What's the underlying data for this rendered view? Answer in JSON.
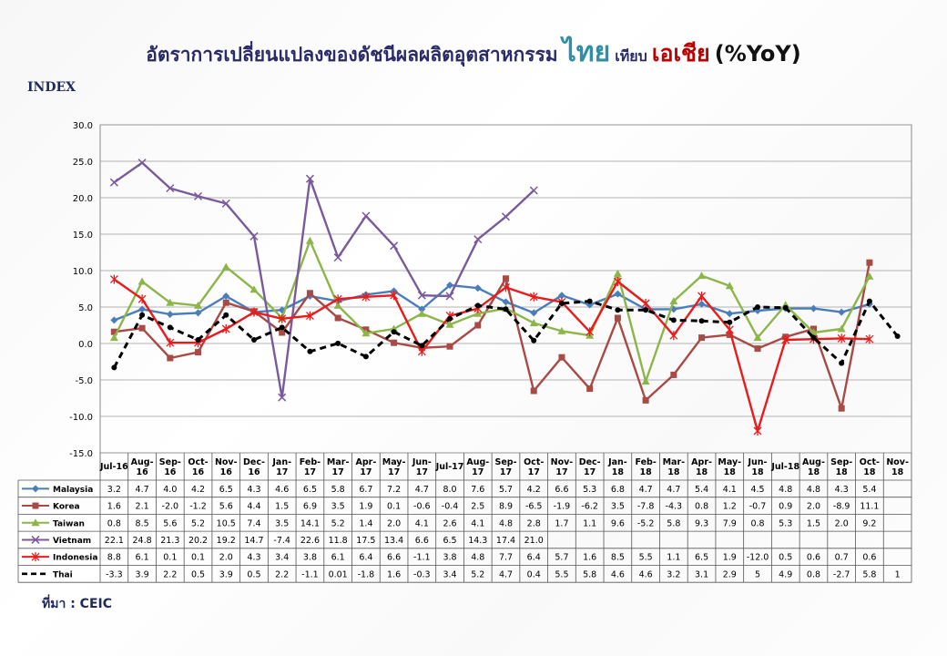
{
  "title": {
    "part1": "อัตราการเปลี่ยนแปลงของดัชนีผลผลิตอุตสาหกรรม",
    "part2": "ไทย",
    "part3": "เทียบ",
    "part4": "เอเชีย",
    "part5": "(%YoY)"
  },
  "y_axis_label": "INDEX",
  "source": "ที่มา : CEIC",
  "colors": {
    "Malaysia": "#4a7ebb",
    "Korea": "#a84a45",
    "Taiwan": "#8db64a",
    "Vietnam": "#7a5a9c",
    "Indonesia": "#e81c1c",
    "Thai": "#000000"
  },
  "chart_data": {
    "type": "line",
    "ylim": [
      -15,
      30
    ],
    "yticks": [
      "30.0",
      "25.0",
      "20.0",
      "15.0",
      "10.0",
      "5.0",
      "0.0",
      "-5.0",
      "-10.0",
      "-15.0"
    ],
    "grid": true,
    "legend": "data-table-below",
    "categories": [
      [
        "Jul-16"
      ],
      [
        "Aug-",
        "16"
      ],
      [
        "Sep-",
        "16"
      ],
      [
        "Oct-",
        "16"
      ],
      [
        "Nov-",
        "16"
      ],
      [
        "Dec-",
        "16"
      ],
      [
        "Jan-",
        "17"
      ],
      [
        "Feb-",
        "17"
      ],
      [
        "Mar-",
        "17"
      ],
      [
        "Apr-",
        "17"
      ],
      [
        "May-",
        "17"
      ],
      [
        "Jun-",
        "17"
      ],
      [
        "Jul-17"
      ],
      [
        "Aug-",
        "17"
      ],
      [
        "Sep-",
        "17"
      ],
      [
        "Oct-",
        "17"
      ],
      [
        "Nov-",
        "17"
      ],
      [
        "Dec-",
        "17"
      ],
      [
        "Jan-",
        "18"
      ],
      [
        "Feb-",
        "18"
      ],
      [
        "Mar-",
        "18"
      ],
      [
        "Apr-",
        "18"
      ],
      [
        "May-",
        "18"
      ],
      [
        "Jun-",
        "18"
      ],
      [
        "Jul-18"
      ],
      [
        "Aug-",
        "18"
      ],
      [
        "Sep-",
        "18"
      ],
      [
        "Oct-",
        "18"
      ],
      [
        "Nov-",
        "18"
      ]
    ],
    "series": [
      {
        "name": "Malaysia",
        "marker": "diamond",
        "values": [
          3.2,
          4.7,
          4.0,
          4.2,
          6.5,
          4.3,
          4.6,
          6.5,
          5.8,
          6.7,
          7.2,
          4.7,
          8.0,
          7.6,
          5.7,
          4.2,
          6.6,
          5.3,
          6.8,
          4.7,
          4.7,
          5.4,
          4.1,
          4.5,
          4.8,
          4.8,
          4.3,
          5.4,
          null
        ],
        "labels": [
          "3.2",
          "4.7",
          "4.0",
          "4.2",
          "6.5",
          "4.3",
          "4.6",
          "6.5",
          "5.8",
          "6.7",
          "7.2",
          "4.7",
          "8.0",
          "7.6",
          "5.7",
          "4.2",
          "6.6",
          "5.3",
          "6.8",
          "4.7",
          "4.7",
          "5.4",
          "4.1",
          "4.5",
          "4.8",
          "4.8",
          "4.3",
          "5.4",
          ""
        ]
      },
      {
        "name": "Korea",
        "marker": "square",
        "values": [
          1.6,
          2.1,
          -2.0,
          -1.2,
          5.6,
          4.4,
          1.5,
          6.9,
          3.5,
          1.9,
          0.1,
          -0.6,
          -0.4,
          2.5,
          8.9,
          -6.5,
          -1.9,
          -6.2,
          3.5,
          -7.8,
          -4.3,
          0.8,
          1.2,
          -0.7,
          0.9,
          2.0,
          -8.9,
          11.1,
          null
        ],
        "labels": [
          "1.6",
          "2.1",
          "-2.0",
          "-1.2",
          "5.6",
          "4.4",
          "1.5",
          "6.9",
          "3.5",
          "1.9",
          "0.1",
          "-0.6",
          "-0.4",
          "2.5",
          "8.9",
          "-6.5",
          "-1.9",
          "-6.2",
          "3.5",
          "-7.8",
          "-4.3",
          "0.8",
          "1.2",
          "-0.7",
          "0.9",
          "2.0",
          "-8.9",
          "11.1",
          ""
        ]
      },
      {
        "name": "Taiwan",
        "marker": "triangle",
        "values": [
          0.8,
          8.5,
          5.6,
          5.2,
          10.5,
          7.4,
          3.5,
          14.1,
          5.2,
          1.4,
          2.0,
          4.1,
          2.6,
          4.1,
          4.8,
          2.8,
          1.7,
          1.1,
          9.6,
          -5.2,
          5.8,
          9.3,
          7.9,
          0.8,
          5.3,
          1.5,
          2.0,
          9.2,
          null
        ],
        "labels": [
          "0.8",
          "8.5",
          "5.6",
          "5.2",
          "10.5",
          "7.4",
          "3.5",
          "14.1",
          "5.2",
          "1.4",
          "2.0",
          "4.1",
          "2.6",
          "4.1",
          "4.8",
          "2.8",
          "1.7",
          "1.1",
          "9.6",
          "-5.2",
          "5.8",
          "9.3",
          "7.9",
          "0.8",
          "5.3",
          "1.5",
          "2.0",
          "9.2",
          ""
        ]
      },
      {
        "name": "Vietnam",
        "marker": "x",
        "values": [
          22.1,
          24.8,
          21.3,
          20.2,
          19.2,
          14.7,
          -7.4,
          22.6,
          11.8,
          17.5,
          13.4,
          6.6,
          6.5,
          14.3,
          17.4,
          21.0,
          null,
          null,
          null,
          null,
          null,
          null,
          null,
          null,
          null,
          null,
          null,
          null,
          null
        ],
        "labels": [
          "22.1",
          "24.8",
          "21.3",
          "20.2",
          "19.2",
          "14.7",
          "-7.4",
          "22.6",
          "11.8",
          "17.5",
          "13.4",
          "6.6",
          "6.5",
          "14.3",
          "17.4",
          "21.0",
          "",
          "",
          "",
          "",
          "",
          "",
          "",
          "",
          "",
          "",
          "",
          "",
          ""
        ]
      },
      {
        "name": "Indonesia",
        "marker": "star",
        "values": [
          8.8,
          6.1,
          0.1,
          0.1,
          2.0,
          4.3,
          3.4,
          3.8,
          6.1,
          6.4,
          6.6,
          -1.1,
          3.8,
          4.8,
          7.7,
          6.4,
          5.7,
          1.6,
          8.5,
          5.5,
          1.1,
          6.5,
          1.9,
          -12.0,
          0.5,
          0.6,
          0.7,
          0.6,
          null
        ],
        "labels": [
          "8.8",
          "6.1",
          "0.1",
          "0.1",
          "2.0",
          "4.3",
          "3.4",
          "3.8",
          "6.1",
          "6.4",
          "6.6",
          "-1.1",
          "3.8",
          "4.8",
          "7.7",
          "6.4",
          "5.7",
          "1.6",
          "8.5",
          "5.5",
          "1.1",
          "6.5",
          "1.9",
          "-12.0",
          "0.5",
          "0.6",
          "0.7",
          "0.6",
          ""
        ]
      },
      {
        "name": "Thai",
        "marker": "dot",
        "values": [
          -3.3,
          3.9,
          2.2,
          0.5,
          3.9,
          0.5,
          2.2,
          -1.1,
          0.01,
          -1.8,
          1.6,
          -0.3,
          3.4,
          5.2,
          4.7,
          0.4,
          5.5,
          5.8,
          4.6,
          4.6,
          3.2,
          3.1,
          2.9,
          5,
          4.9,
          0.8,
          -2.7,
          5.8,
          1
        ],
        "labels": [
          "-3.3",
          "3.9",
          "2.2",
          "0.5",
          "3.9",
          "0.5",
          "2.2",
          "-1.1",
          "0.01",
          "-1.8",
          "1.6",
          "-0.3",
          "3.4",
          "5.2",
          "4.7",
          "0.4",
          "5.5",
          "5.8",
          "4.6",
          "4.6",
          "3.2",
          "3.1",
          "2.9",
          "5",
          "4.9",
          "0.8",
          "-2.7",
          "5.8",
          "1"
        ]
      }
    ]
  }
}
